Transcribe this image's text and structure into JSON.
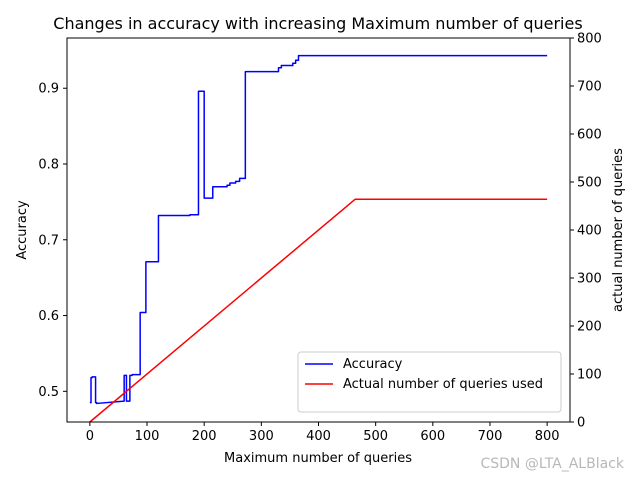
{
  "chart_data": {
    "type": "line",
    "title": "Changes in accuracy with increasing Maximum number of queries",
    "xlabel": "Maximum number of queries",
    "ylabel": "Accuracy",
    "ylabel_right": "actual number of queries",
    "xlim": [
      -40,
      840
    ],
    "ylim": [
      0.4595,
      0.9663
    ],
    "ylim_right": [
      0,
      800
    ],
    "x_ticks": [
      "0",
      "100",
      "200",
      "300",
      "400",
      "500",
      "600",
      "700",
      "800"
    ],
    "y_ticks": [
      "0.5",
      "0.6",
      "0.7",
      "0.8",
      "0.9"
    ],
    "y_ticks_right": [
      "0",
      "100",
      "200",
      "300",
      "400",
      "500",
      "600",
      "700",
      "800"
    ],
    "grid": false,
    "legend_position": "lower-right",
    "series": [
      {
        "name": "Accuracy",
        "axis": "left",
        "color": "#0000ff",
        "x": [
          0,
          2,
          2,
          4,
          4,
          10,
          10,
          12,
          12,
          60,
          60,
          64,
          64,
          70,
          70,
          74,
          74,
          88,
          88,
          98,
          98,
          120,
          120,
          175,
          175,
          190,
          190,
          200,
          200,
          215,
          215,
          240,
          240,
          245,
          245,
          255,
          255,
          262,
          262,
          272,
          272,
          330,
          330,
          335,
          335,
          355,
          355,
          360,
          360,
          365,
          365,
          428,
          428,
          800
        ],
        "y": [
          0.485,
          0.485,
          0.518,
          0.518,
          0.519,
          0.519,
          0.485,
          0.485,
          0.484,
          0.487,
          0.521,
          0.521,
          0.487,
          0.487,
          0.521,
          0.521,
          0.522,
          0.522,
          0.604,
          0.604,
          0.671,
          0.671,
          0.732,
          0.732,
          0.733,
          0.733,
          0.896,
          0.896,
          0.755,
          0.755,
          0.77,
          0.77,
          0.772,
          0.772,
          0.775,
          0.775,
          0.777,
          0.777,
          0.781,
          0.781,
          0.922,
          0.922,
          0.927,
          0.927,
          0.93,
          0.93,
          0.933,
          0.933,
          0.937,
          0.937,
          0.943,
          0.943,
          0.943,
          0.943
        ]
      },
      {
        "name": "Actual number of queries used",
        "axis": "right",
        "color": "#ff0000",
        "x": [
          0,
          464,
          800
        ],
        "y": [
          0,
          464,
          464
        ]
      }
    ]
  },
  "watermark": "CSDN @LTA_ALBlack"
}
